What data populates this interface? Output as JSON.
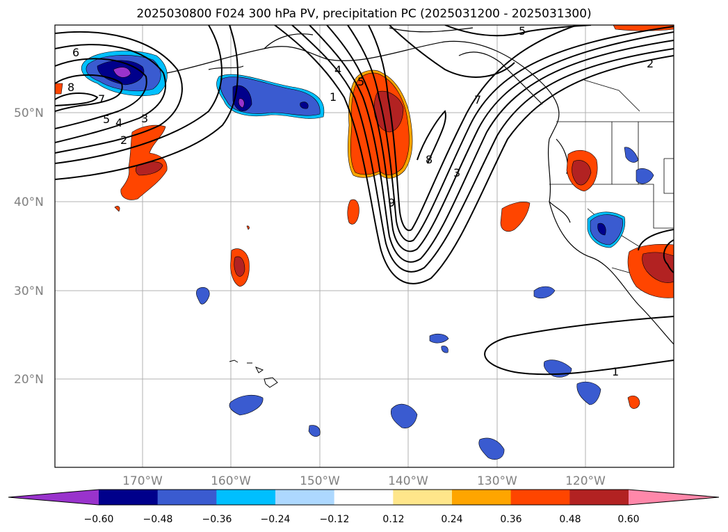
{
  "title": "2025030800 F024 300 hPa PV, precipitation PC (2025031200 - 2025031300)",
  "map": {
    "lat_labels": [
      "50°N",
      "40°N",
      "30°N",
      "20°N"
    ],
    "lon_labels": [
      "170°W",
      "160°W",
      "150°W",
      "140°W",
      "130°W",
      "120°W"
    ],
    "pv_contour_labels": [
      "6",
      "8",
      "7",
      "5",
      "4",
      "3",
      "2",
      "4",
      "5",
      "1",
      "7",
      "8",
      "3",
      "9",
      "5",
      "2",
      "1"
    ]
  },
  "colorbar": {
    "tick_labels": [
      "−0.60",
      "−0.48",
      "−0.36",
      "−0.24",
      "−0.12",
      "0.12",
      "0.24",
      "0.36",
      "0.48",
      "0.60"
    ],
    "colors": [
      "#9933cc",
      "#00008b",
      "#3a5bd0",
      "#00bfff",
      "#add8ff",
      "#ffffff",
      "#ffe68a",
      "#ffa500",
      "#ff4500",
      "#b22222",
      "#ff88aa"
    ]
  }
}
